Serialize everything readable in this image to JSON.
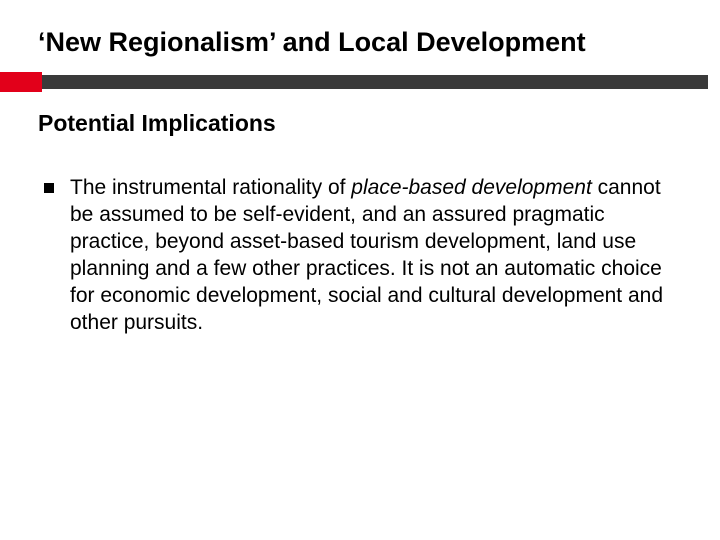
{
  "title": "‘New Regionalism’ and Local Development",
  "subtitle": "Potential Implications",
  "bullet": {
    "part1": "The instrumental rationality of ",
    "italic": "place-based development",
    "part2": " cannot be assumed to be self-evident, and an assured pragmatic practice, beyond asset-based tourism development, land use planning and a few other practices. It is not an automatic choice for economic development, social and cultural development and other pursuits."
  },
  "colors": {
    "accent_red": "#e2001a",
    "dark_bar": "#3a3a3a",
    "background": "#ffffff",
    "text": "#000000"
  },
  "typography": {
    "title_fontsize": 27,
    "subtitle_fontsize": 23,
    "body_fontsize": 21,
    "font_family": "Arial"
  },
  "layout": {
    "slide_width": 720,
    "slide_height": 540,
    "red_block_width": 42,
    "divider_height": 20
  }
}
